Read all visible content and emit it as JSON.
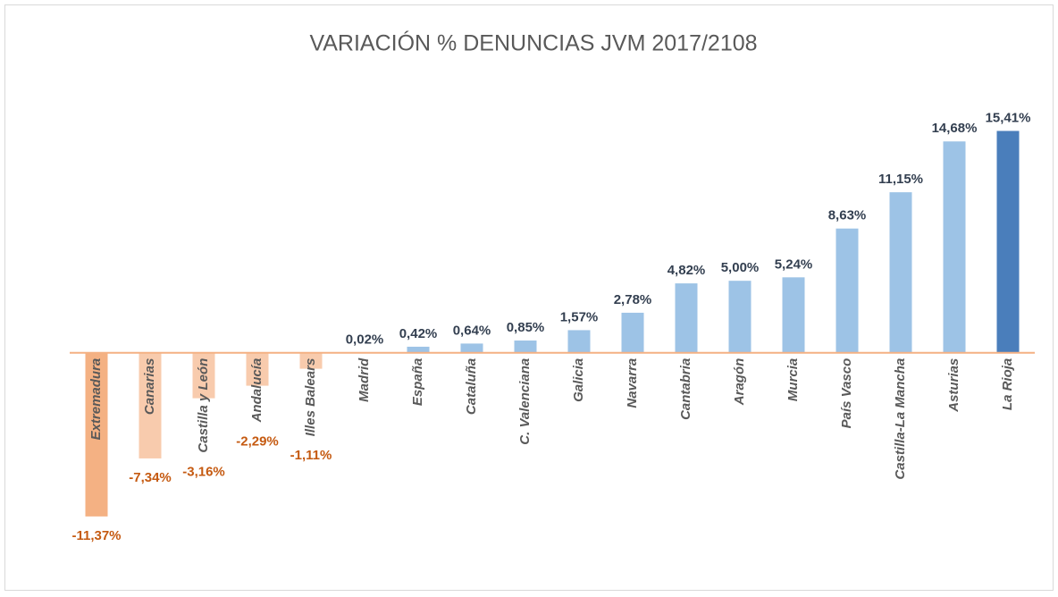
{
  "chart_data": {
    "type": "bar",
    "title": "VARIACIÓN % DENUNCIAS JVM 2017/2108",
    "categories": [
      "Extremadura",
      "Canarias",
      "Castilla y León",
      "Andalucía",
      "Illes Balears",
      "Madrid",
      "España",
      "Cataluña",
      "C. Valenciana",
      "Galicia",
      "Navarra",
      "Cantabria",
      "Aragón",
      "Murcia",
      "País Vasco",
      "Castilla-La Mancha",
      "Asturias",
      "La Rioja"
    ],
    "values": [
      -11.37,
      -7.34,
      -3.16,
      -2.29,
      -1.11,
      0.02,
      0.42,
      0.64,
      0.85,
      1.57,
      2.78,
      4.82,
      5.0,
      5.24,
      8.63,
      11.15,
      14.68,
      15.41
    ],
    "value_labels": [
      "-11,37%",
      "-7,34%",
      "-3,16%",
      "-2,29%",
      "-1,11%",
      "0,02%",
      "0,42%",
      "0,64%",
      "0,85%",
      "1,57%",
      "2,78%",
      "4,82%",
      "5,00%",
      "5,24%",
      "8,63%",
      "11,15%",
      "14,68%",
      "15,41%"
    ],
    "colors": [
      "#f4b183",
      "#f8cbad",
      "#f8cbad",
      "#f8cbad",
      "#f8cbad",
      "#9dc3e6",
      "#9dc3e6",
      "#9dc3e6",
      "#9dc3e6",
      "#9dc3e6",
      "#9dc3e6",
      "#9dc3e6",
      "#9dc3e6",
      "#9dc3e6",
      "#9dc3e6",
      "#9dc3e6",
      "#9dc3e6",
      "#4a7ebb"
    ],
    "ylim": [
      -12,
      16
    ]
  }
}
